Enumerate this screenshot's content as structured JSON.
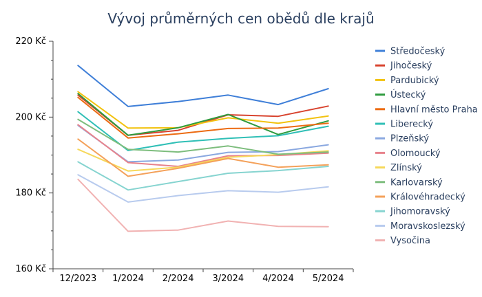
{
  "chart_data": {
    "type": "line",
    "title": "Vývoj průměrných cen obědů dle krajů",
    "xlabel": "",
    "ylabel": "",
    "categories": [
      "12/2023",
      "1/2024",
      "2/2024",
      "3/2024",
      "4/2024",
      "5/2024"
    ],
    "ylim": [
      160,
      220
    ],
    "yticks": [
      160,
      180,
      200,
      220
    ],
    "ytick_labels": [
      "160 Kč",
      "180 Kč",
      "200 Kč",
      "220 Kč"
    ],
    "grid": false,
    "legend_position": "right",
    "series": [
      {
        "name": "Středočeský",
        "color": "#3f7fd8",
        "values": [
          213.6,
          202.8,
          204.1,
          205.8,
          203.3,
          207.5
        ]
      },
      {
        "name": "Jihočeský",
        "color": "#d8432e",
        "values": [
          205.8,
          195.2,
          196.5,
          200.6,
          200.2,
          202.9
        ]
      },
      {
        "name": "Pardubický",
        "color": "#f2c20f",
        "values": [
          206.7,
          197.1,
          197.2,
          199.8,
          198.4,
          200.3
        ]
      },
      {
        "name": "Ústecký",
        "color": "#2e9b3e",
        "values": [
          206.2,
          195.2,
          197.2,
          200.7,
          195.4,
          199.0
        ]
      },
      {
        "name": "Hlavní město Praha",
        "color": "#ec6b12",
        "values": [
          205.2,
          194.5,
          195.6,
          197.0,
          197.1,
          198.4
        ]
      },
      {
        "name": "Liberecký",
        "color": "#2fbfb6",
        "values": [
          201.4,
          191.2,
          193.4,
          194.4,
          195.1,
          197.6
        ]
      },
      {
        "name": "Plzeňský",
        "color": "#8aa8e0",
        "values": [
          197.8,
          188.2,
          188.7,
          190.7,
          190.9,
          192.7
        ]
      },
      {
        "name": "Olomoucký",
        "color": "#e8838c",
        "values": [
          198.0,
          188.0,
          187.0,
          189.8,
          189.9,
          190.5
        ]
      },
      {
        "name": "Zlínský",
        "color": "#f6d85a",
        "values": [
          191.5,
          185.8,
          186.8,
          189.4,
          190.1,
          191.1
        ]
      },
      {
        "name": "Karlovarský",
        "color": "#7dbd7d",
        "values": [
          199.4,
          191.5,
          190.8,
          192.4,
          190.2,
          190.8
        ]
      },
      {
        "name": "Královéhradecký",
        "color": "#f4a15a",
        "values": [
          194.2,
          184.4,
          186.5,
          189.1,
          186.8,
          187.4
        ]
      },
      {
        "name": "Jihomoravský",
        "color": "#86d4d0",
        "values": [
          188.2,
          180.8,
          183.0,
          185.2,
          185.9,
          187.0
        ]
      },
      {
        "name": "Moravskoslezský",
        "color": "#b8cbee",
        "values": [
          184.8,
          177.6,
          179.3,
          180.6,
          180.2,
          181.6
        ]
      },
      {
        "name": "Vysočina",
        "color": "#f1b2b2",
        "values": [
          183.6,
          169.9,
          170.2,
          172.6,
          171.2,
          171.1
        ]
      }
    ]
  }
}
